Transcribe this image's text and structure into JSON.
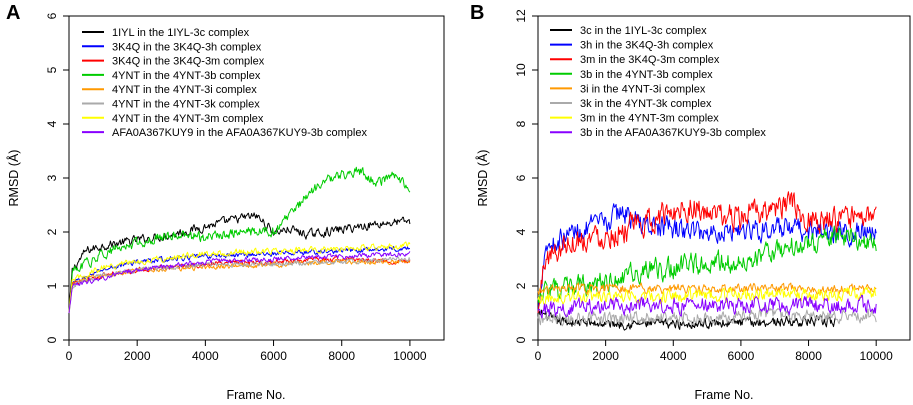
{
  "chart_data": [
    {
      "type": "line",
      "panel": "A",
      "xlabel": "Frame No.",
      "ylabel": "RMSD (Å)",
      "xlim": [
        0,
        11000
      ],
      "ylim": [
        0,
        6
      ],
      "xticks": [
        0,
        2000,
        4000,
        6000,
        8000,
        10000
      ],
      "yticks": [
        0,
        1,
        2,
        3,
        4,
        5,
        6
      ],
      "series": [
        {
          "name": "1IYL in the 1IYL-3c complex",
          "color": "#000000",
          "noise": 0.07,
          "x": [
            0,
            100,
            500,
            1000,
            2000,
            3000,
            4000,
            5000,
            5500,
            6000,
            6500,
            7000,
            8000,
            9000,
            10000
          ],
          "y": [
            0.5,
            1.3,
            1.65,
            1.75,
            1.85,
            1.95,
            2.1,
            2.25,
            2.3,
            2.0,
            2.05,
            1.95,
            2.05,
            2.15,
            2.2
          ]
        },
        {
          "name": "3K4Q in the 3K4Q-3h complex",
          "color": "#0000ff",
          "noise": 0.04,
          "x": [
            0,
            100,
            1000,
            2000,
            4000,
            6000,
            8000,
            10000
          ],
          "y": [
            0.5,
            1.05,
            1.3,
            1.45,
            1.55,
            1.6,
            1.65,
            1.7
          ]
        },
        {
          "name": "3K4Q in the 3K4Q-3m complex",
          "color": "#ff0000",
          "noise": 0.04,
          "x": [
            0,
            100,
            1000,
            2000,
            4000,
            6000,
            8000,
            10000
          ],
          "y": [
            0.5,
            1.05,
            1.2,
            1.3,
            1.4,
            1.45,
            1.5,
            1.45
          ]
        },
        {
          "name": "4YNT in the 4YNT-3b complex",
          "color": "#00cc00",
          "noise": 0.08,
          "x": [
            0,
            100,
            1000,
            2000,
            3000,
            4000,
            5000,
            6000,
            6500,
            7000,
            7500,
            8000,
            8500,
            9000,
            9500,
            10000
          ],
          "y": [
            0.5,
            1.25,
            1.6,
            1.8,
            1.95,
            1.9,
            2.0,
            2.0,
            2.3,
            2.7,
            2.95,
            3.05,
            3.15,
            2.9,
            3.05,
            2.8
          ]
        },
        {
          "name": "4YNT in the 4YNT-3i complex",
          "color": "#ff9900",
          "noise": 0.04,
          "x": [
            0,
            100,
            1000,
            2000,
            4000,
            6000,
            8000,
            10000
          ],
          "y": [
            0.5,
            1.05,
            1.2,
            1.3,
            1.35,
            1.4,
            1.45,
            1.45
          ]
        },
        {
          "name": "4YNT in the 4YNT-3k complex",
          "color": "#aaaaaa",
          "noise": 0.04,
          "x": [
            0,
            100,
            1000,
            2000,
            4000,
            6000,
            8000,
            10000
          ],
          "y": [
            0.5,
            1.0,
            1.2,
            1.3,
            1.4,
            1.4,
            1.45,
            1.5
          ]
        },
        {
          "name": "4YNT in the 4YNT-3m complex",
          "color": "#ffff00",
          "noise": 0.05,
          "x": [
            0,
            100,
            1000,
            2000,
            4000,
            6000,
            8000,
            10000
          ],
          "y": [
            0.5,
            1.1,
            1.35,
            1.45,
            1.6,
            1.65,
            1.7,
            1.75
          ]
        },
        {
          "name": "AFA0A367KUY9 in the AFA0A367KUY9-3b complex",
          "color": "#8800ff",
          "noise": 0.04,
          "x": [
            0,
            100,
            1000,
            2000,
            4000,
            6000,
            8000,
            10000
          ],
          "y": [
            0.5,
            1.0,
            1.15,
            1.3,
            1.45,
            1.5,
            1.55,
            1.6
          ]
        }
      ]
    },
    {
      "type": "line",
      "panel": "B",
      "xlabel": "Frame No.",
      "ylabel": "RMSD (Å)",
      "xlim": [
        0,
        11000
      ],
      "ylim": [
        0,
        12
      ],
      "xticks": [
        0,
        2000,
        4000,
        6000,
        8000,
        10000
      ],
      "yticks": [
        0,
        2,
        4,
        6,
        8,
        10,
        12
      ],
      "series": [
        {
          "name": "3c in the 1IYL-3c complex",
          "color": "#000000",
          "noise": 0.15,
          "x": [
            0,
            100,
            500,
            2000,
            4000,
            6000,
            8000,
            8800
          ],
          "y": [
            0.8,
            1.0,
            0.7,
            0.6,
            0.6,
            0.65,
            0.7,
            0.65
          ]
        },
        {
          "name": "3h in the 3K4Q-3h complex",
          "color": "#0000ff",
          "noise": 0.35,
          "x": [
            0,
            200,
            500,
            1000,
            2000,
            2500,
            3000,
            4000,
            5000,
            6000,
            7000,
            8000,
            9000,
            10000
          ],
          "y": [
            1.0,
            3.5,
            3.6,
            4.0,
            4.3,
            4.8,
            4.3,
            4.1,
            4.0,
            4.1,
            4.1,
            4.0,
            4.0,
            4.0
          ]
        },
        {
          "name": "3m in the 3K4Q-3m complex",
          "color": "#ff0000",
          "noise": 0.4,
          "x": [
            0,
            200,
            1000,
            2000,
            3000,
            4000,
            4500,
            5000,
            6000,
            7000,
            7500,
            8000,
            9000,
            10000
          ],
          "y": [
            1.0,
            3.0,
            3.7,
            3.9,
            4.2,
            4.8,
            5.0,
            4.6,
            4.5,
            4.9,
            5.0,
            4.5,
            4.4,
            4.6
          ]
        },
        {
          "name": "3b in the 4YNT-3b complex",
          "color": "#00cc00",
          "noise": 0.35,
          "x": [
            0,
            300,
            1000,
            2000,
            3000,
            4000,
            5000,
            6000,
            7000,
            8000,
            9000,
            10000
          ],
          "y": [
            1.5,
            1.8,
            1.9,
            2.1,
            2.5,
            2.7,
            2.9,
            2.9,
            3.3,
            3.6,
            3.9,
            3.5
          ]
        },
        {
          "name": "3i in the 4YNT-3i complex",
          "color": "#ff9900",
          "noise": 0.15,
          "x": [
            0,
            1000,
            4000,
            7000,
            10000
          ],
          "y": [
            1.8,
            1.9,
            1.9,
            1.9,
            1.9
          ]
        },
        {
          "name": "3k in the 4YNT-3k complex",
          "color": "#aaaaaa",
          "noise": 0.2,
          "x": [
            0,
            1000,
            4000,
            7000,
            10000
          ],
          "y": [
            0.8,
            0.8,
            0.85,
            0.9,
            0.9
          ]
        },
        {
          "name": "3m in the 4YNT-3m complex",
          "color": "#ffff00",
          "noise": 0.2,
          "x": [
            0,
            1000,
            4000,
            7000,
            10000
          ],
          "y": [
            1.5,
            1.6,
            1.6,
            1.7,
            1.7
          ]
        },
        {
          "name": "3b in the AFA0A367KUY9-3b complex",
          "color": "#8800ff",
          "noise": 0.25,
          "x": [
            0,
            1000,
            4000,
            7000,
            10000
          ],
          "y": [
            1.1,
            1.2,
            1.3,
            1.3,
            1.3
          ]
        }
      ]
    }
  ]
}
